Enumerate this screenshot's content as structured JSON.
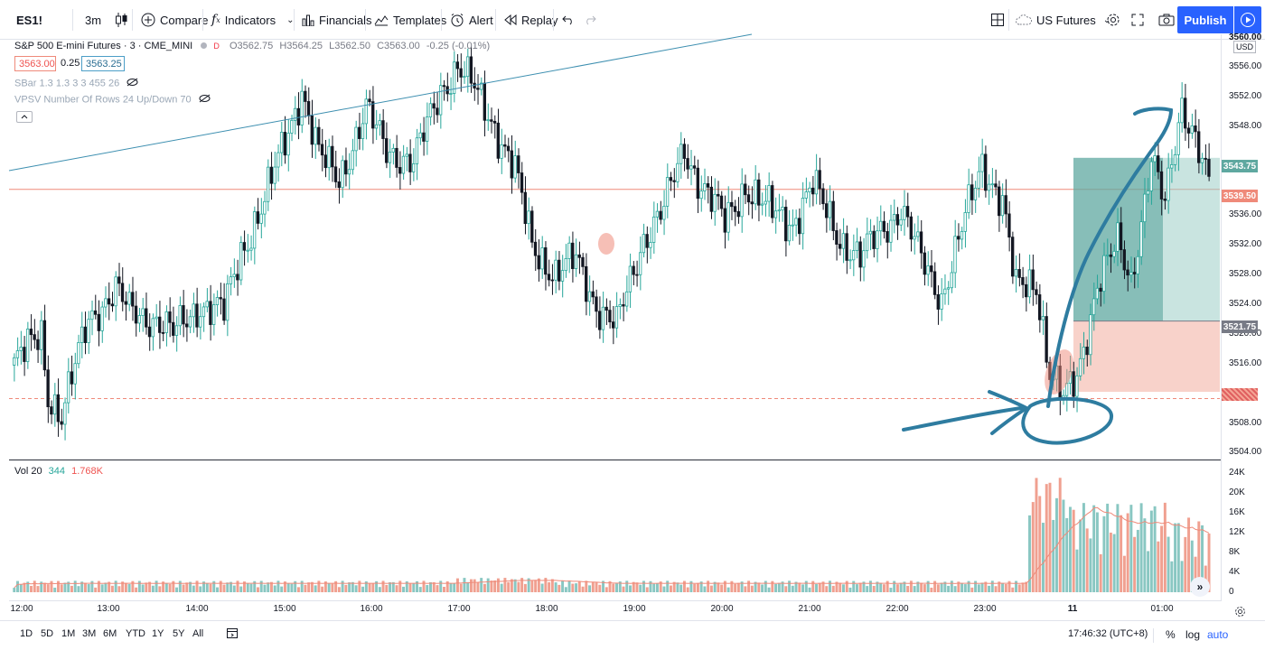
{
  "toolbar": {
    "symbol": "ES1!",
    "interval": "3m",
    "compare": "Compare",
    "indicators": "Indicators",
    "financials": "Financials",
    "templates": "Templates",
    "alert": "Alert",
    "replay": "Replay",
    "layout_name": "US Futures",
    "publish": "Publish"
  },
  "legend": {
    "title": "S&P 500 E-mini Futures · 3 · CME_MINI",
    "delayed_badge": "D",
    "o_label": "O",
    "o_value": "3562.75",
    "h_label": "H",
    "h_value": "3564.25",
    "l_label": "L",
    "l_value": "3562.50",
    "c_label": "C",
    "c_value": "3563.00",
    "change": "-0.25 (-0.01%)",
    "sell_price": "3563.00",
    "spread": "0.25",
    "buy_price": "3563.25",
    "indicator1": "SBar 1.3 1.3 3 3 455 26",
    "indicator2": "VPSV Number Of Rows 24 Up/Down 70"
  },
  "volume_legend": {
    "label": "Vol 20",
    "value1": "344",
    "value2": "1.768K"
  },
  "price_axis": {
    "currency": "USD",
    "ticks": [
      "3556.00",
      "3552.00",
      "3548.00",
      "3536.00",
      "3532.00",
      "3528.00",
      "3524.00",
      "3520.00",
      "3516.00",
      "3508.00",
      "3504.00"
    ],
    "top_partial": "3560.00",
    "label_target": "3543.75",
    "label_current": "3539.50",
    "label_entry": "3521.75"
  },
  "volume_axis": {
    "ticks": [
      "24K",
      "20K",
      "16K",
      "12K",
      "8K",
      "4K",
      "0"
    ]
  },
  "time_axis": {
    "labels": [
      "12:00",
      "13:00",
      "14:00",
      "15:00",
      "16:00",
      "17:00",
      "18:00",
      "19:00",
      "20:00",
      "21:00",
      "22:00",
      "23:00",
      "11",
      "01:00"
    ]
  },
  "bottom_bar": {
    "ranges": [
      "1D",
      "5D",
      "1M",
      "3M",
      "6M",
      "YTD",
      "1Y",
      "5Y",
      "All"
    ],
    "clock": "17:46:32 (UTC+8)",
    "percent": "%",
    "log": "log",
    "auto": "auto"
  },
  "colors": {
    "up": "#26a69a",
    "down": "#131722",
    "up_volume": "#89c7c2",
    "down_volume": "#f0a090",
    "price_line": "#ef8a7a",
    "accent": "#2962ff",
    "annotation": "#2e7ca0",
    "target_zone": "#5fa8a0",
    "stop_zone": "#f6c7bd"
  },
  "chart_data": {
    "type": "candlestick",
    "symbol": "ES1!",
    "interval": "3m",
    "open": 3562.75,
    "high": 3564.25,
    "low": 3562.5,
    "close": 3563.0,
    "current_price": 3539.5,
    "ylim": [
      3504,
      3560
    ],
    "position": {
      "entry": 3521.75,
      "target": 3543.75,
      "stop": 3512.0
    },
    "reference_low_line": 3511.5,
    "approx_closes_by_hour": {
      "12:00": 3516,
      "13:00": 3522,
      "14:00": 3521,
      "15:00": 3537,
      "16:00": 3552,
      "17:00": 3548,
      "18:00": 3548,
      "19:00": 3524,
      "20:00": 3538,
      "21:00": 3535,
      "22:00": 3532,
      "23:00": 3528,
      "11": 3516,
      "01:00": 3546
    },
    "volume_ylim": [
      0,
      24000
    ]
  }
}
